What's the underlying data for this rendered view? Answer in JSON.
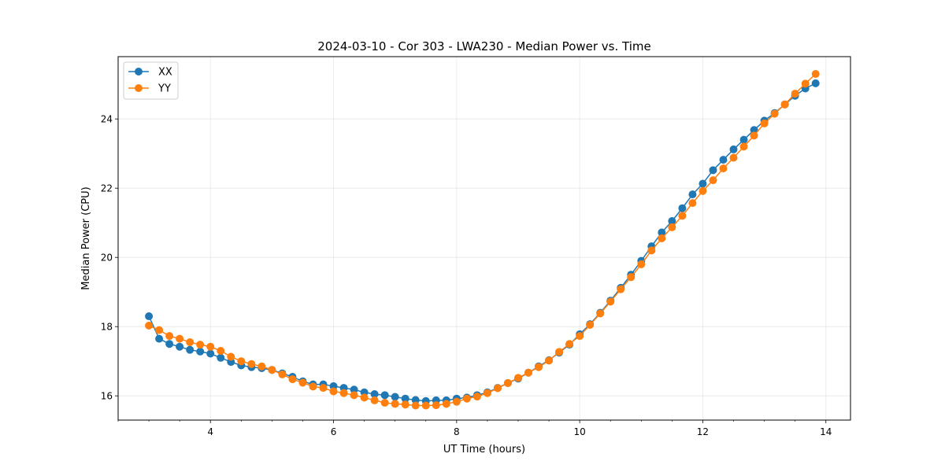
{
  "chart_data": {
    "type": "line",
    "title": "2024-03-10 - Cor 303 - LWA230 - Median Power vs. Time",
    "xlabel": "UT Time (hours)",
    "ylabel": "Median Power (CPU)",
    "xlim": [
      2.5,
      14.4
    ],
    "ylim": [
      15.3,
      25.8
    ],
    "xticks": [
      4,
      6,
      8,
      10,
      12,
      14
    ],
    "xtick_labels": [
      "4",
      "6",
      "8",
      "10",
      "12",
      "14"
    ],
    "xminor_step": 0.5,
    "yticks": [
      16,
      18,
      20,
      22,
      24
    ],
    "ytick_labels": [
      "16",
      "18",
      "20",
      "22",
      "24"
    ],
    "grid": true,
    "legend_position": "top-left",
    "series": [
      {
        "name": "XX",
        "color": "#1f77b4",
        "x": [
          3.0,
          3.1667,
          3.3333,
          3.5,
          3.6667,
          3.8333,
          4.0,
          4.1667,
          4.3333,
          4.5,
          4.6667,
          4.8333,
          5.0,
          5.1667,
          5.3333,
          5.5,
          5.6667,
          5.8333,
          6.0,
          6.1667,
          6.3333,
          6.5,
          6.6667,
          6.8333,
          7.0,
          7.1667,
          7.3333,
          7.5,
          7.6667,
          7.8333,
          8.0,
          8.1667,
          8.3333,
          8.5,
          8.6667,
          8.8333,
          9.0,
          9.1667,
          9.3333,
          9.5,
          9.6667,
          9.8333,
          10.0,
          10.1667,
          10.3333,
          10.5,
          10.6667,
          10.8333,
          11.0,
          11.1667,
          11.3333,
          11.5,
          11.6667,
          11.8333,
          12.0,
          12.1667,
          12.3333,
          12.5,
          12.6667,
          12.8333,
          13.0,
          13.1667,
          13.3333,
          13.5,
          13.6667,
          13.8333
        ],
        "y": [
          18.3,
          17.65,
          17.5,
          17.42,
          17.33,
          17.28,
          17.22,
          17.1,
          16.98,
          16.88,
          16.83,
          16.8,
          16.75,
          16.65,
          16.55,
          16.42,
          16.33,
          16.33,
          16.28,
          16.23,
          16.18,
          16.1,
          16.05,
          16.02,
          15.97,
          15.92,
          15.88,
          15.85,
          15.87,
          15.87,
          15.92,
          15.95,
          16.02,
          16.1,
          16.23,
          16.37,
          16.5,
          16.67,
          16.85,
          17.03,
          17.25,
          17.48,
          17.78,
          18.07,
          18.4,
          18.75,
          19.12,
          19.5,
          19.9,
          20.32,
          20.72,
          21.05,
          21.42,
          21.82,
          22.13,
          22.52,
          22.82,
          23.12,
          23.4,
          23.68,
          23.95,
          24.17,
          24.42,
          24.67,
          24.88,
          25.03
        ]
      },
      {
        "name": "YY",
        "color": "#ff7f0e",
        "x": [
          3.0,
          3.1667,
          3.3333,
          3.5,
          3.6667,
          3.8333,
          4.0,
          4.1667,
          4.3333,
          4.5,
          4.6667,
          4.8333,
          5.0,
          5.1667,
          5.3333,
          5.5,
          5.6667,
          5.8333,
          6.0,
          6.1667,
          6.3333,
          6.5,
          6.6667,
          6.8333,
          7.0,
          7.1667,
          7.3333,
          7.5,
          7.6667,
          7.8333,
          8.0,
          8.1667,
          8.3333,
          8.5,
          8.6667,
          8.8333,
          9.0,
          9.1667,
          9.3333,
          9.5,
          9.6667,
          9.8333,
          10.0,
          10.1667,
          10.3333,
          10.5,
          10.6667,
          10.8333,
          11.0,
          11.1667,
          11.3333,
          11.5,
          11.6667,
          11.8333,
          12.0,
          12.1667,
          12.3333,
          12.5,
          12.6667,
          12.8333,
          13.0,
          13.1667,
          13.3333,
          13.5,
          13.6667,
          13.8333
        ],
        "y": [
          18.03,
          17.9,
          17.73,
          17.65,
          17.55,
          17.48,
          17.42,
          17.3,
          17.13,
          17.0,
          16.92,
          16.85,
          16.75,
          16.62,
          16.48,
          16.38,
          16.27,
          16.23,
          16.13,
          16.08,
          16.02,
          15.95,
          15.87,
          15.8,
          15.77,
          15.75,
          15.72,
          15.72,
          15.73,
          15.77,
          15.83,
          15.92,
          15.98,
          16.08,
          16.22,
          16.37,
          16.52,
          16.67,
          16.83,
          17.02,
          17.27,
          17.5,
          17.73,
          18.05,
          18.38,
          18.72,
          19.08,
          19.43,
          19.8,
          20.2,
          20.55,
          20.87,
          21.2,
          21.57,
          21.92,
          22.23,
          22.57,
          22.88,
          23.2,
          23.52,
          23.87,
          24.15,
          24.42,
          24.73,
          25.02,
          25.3
        ]
      }
    ]
  }
}
